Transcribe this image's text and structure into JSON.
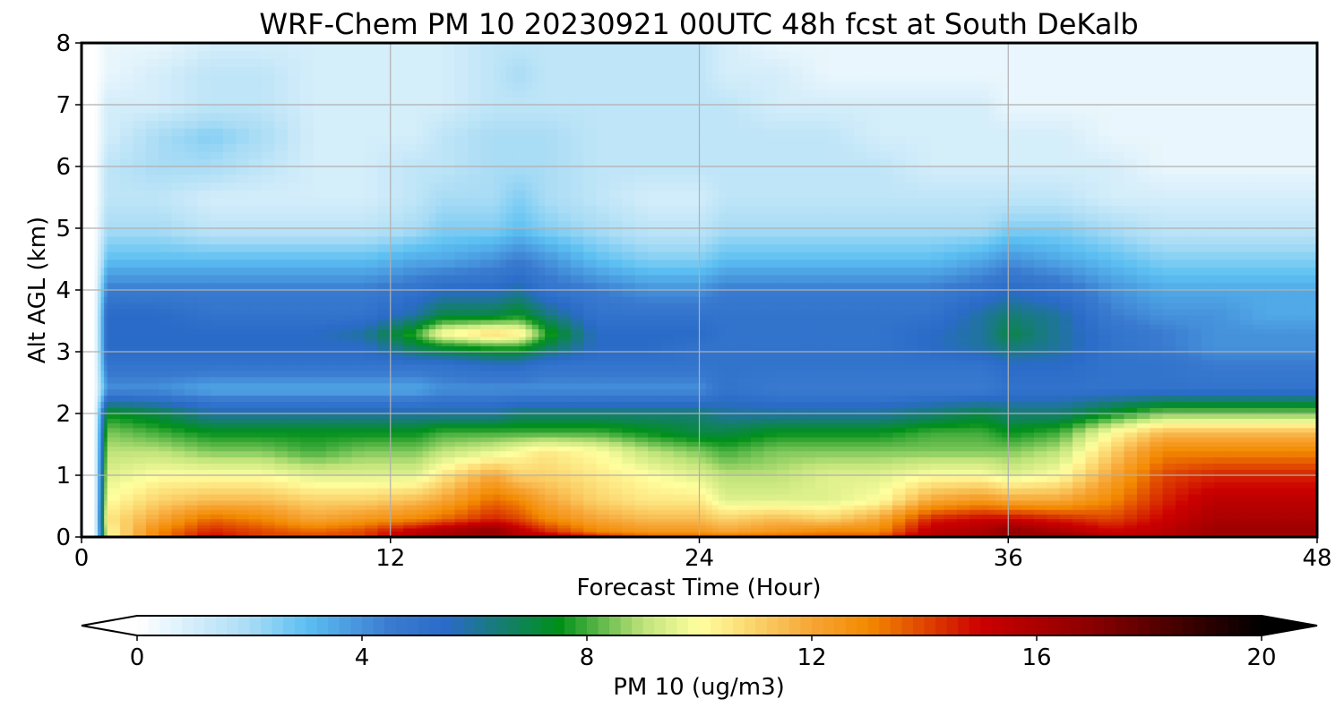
{
  "chart_data": {
    "type": "heatmap",
    "title": "WRF-Chem PM 10  20230921 00UTC 48h fcst at South DeKalb",
    "xlabel": "Forecast Time (Hour)",
    "ylabel": "Alt AGL (km)",
    "xlim": [
      0,
      48
    ],
    "ylim": [
      0,
      8
    ],
    "xticks": [
      0,
      12,
      24,
      36,
      48
    ],
    "yticks": [
      0,
      1,
      2,
      3,
      4,
      5,
      6,
      7,
      8
    ],
    "grid": true,
    "x": [
      0,
      0.5,
      1,
      3,
      5,
      7,
      9,
      11,
      13,
      14,
      16,
      17,
      18,
      20,
      22,
      24,
      25,
      27,
      29,
      31,
      33,
      35,
      36,
      38,
      40,
      42,
      44,
      46,
      48
    ],
    "y": [
      0,
      0.1,
      0.3,
      0.6,
      1,
      1.4,
      1.7,
      2,
      2.4,
      2.8,
      3.1,
      3.3,
      3.6,
      4,
      4.5,
      5,
      5.5,
      6,
      6.5,
      7,
      7.5,
      8
    ],
    "z": [
      [
        0,
        0,
        10,
        13,
        15,
        14,
        14,
        14,
        16,
        16,
        16,
        16,
        16,
        15,
        14,
        14,
        14,
        14,
        14,
        14,
        16,
        16,
        16,
        17,
        16,
        16,
        16,
        16,
        16
      ],
      [
        0,
        0,
        10,
        13,
        14.5,
        14,
        13.5,
        14,
        15.5,
        16,
        17,
        15.5,
        14.5,
        13,
        12.5,
        12.5,
        12,
        12.5,
        13,
        13,
        15.5,
        16,
        17,
        16,
        15,
        15.5,
        16.5,
        16.5,
        16.5
      ],
      [
        0,
        0,
        10.5,
        12,
        13.5,
        13,
        12,
        12.5,
        13,
        13.5,
        14.5,
        14,
        13,
        12,
        11.5,
        11.5,
        11,
        11.5,
        11,
        12,
        14.5,
        15,
        15,
        14.5,
        14,
        15,
        16,
        16,
        16
      ],
      [
        0,
        0,
        10,
        11,
        11.5,
        11.5,
        11,
        11,
        11.5,
        12,
        13.5,
        13,
        12,
        11,
        10.5,
        10.5,
        9.5,
        9.5,
        9.5,
        10,
        12,
        12.5,
        12,
        12,
        13,
        14.5,
        15.5,
        15.5,
        15.5
      ],
      [
        0,
        0,
        9.5,
        10,
        10,
        10,
        9.5,
        9.5,
        9.5,
        10.5,
        12,
        11,
        11,
        10.5,
        10,
        9.5,
        9,
        9,
        9.5,
        9.5,
        10,
        10,
        9.5,
        10,
        12,
        14,
        14.5,
        14.5,
        14.5
      ],
      [
        0,
        0,
        9,
        9,
        8.5,
        8.5,
        8,
        8.5,
        8.5,
        9,
        9.5,
        10,
        10.5,
        10,
        9,
        8.5,
        8,
        8.5,
        8.5,
        8.5,
        8.5,
        8.5,
        8.5,
        9,
        11,
        13,
        13,
        13,
        13
      ],
      [
        0,
        0,
        8.5,
        8,
        7.5,
        7.5,
        7.5,
        7.5,
        7.5,
        8,
        8,
        8,
        8,
        8,
        7.5,
        7,
        7,
        7.5,
        7.5,
        7.5,
        8,
        8,
        7.5,
        8,
        10,
        11.5,
        11.5,
        11.5,
        11.5
      ],
      [
        0,
        0,
        7.5,
        7,
        6,
        6,
        6,
        6,
        6,
        6,
        6,
        6.5,
        6.5,
        6.5,
        6.5,
        6.5,
        6,
        6,
        6,
        6,
        6.5,
        7,
        6.5,
        6.5,
        7.5,
        8.5,
        8.5,
        8.5,
        8.5
      ],
      [
        0,
        0,
        4,
        4,
        3.5,
        3.5,
        3.5,
        3.5,
        3.5,
        4,
        4,
        4,
        4,
        4,
        4,
        4,
        5,
        4.5,
        4.5,
        4.5,
        4.5,
        4.5,
        5,
        5,
        5,
        5,
        5,
        5,
        5
      ],
      [
        0,
        0,
        5,
        5,
        5,
        5,
        5,
        5,
        5,
        5,
        5.5,
        5.5,
        5,
        5,
        5,
        5,
        5,
        5,
        5,
        5,
        5,
        5,
        5.5,
        5.5,
        5,
        5,
        4.5,
        4.5,
        4.5
      ],
      [
        0,
        0,
        5.5,
        5.5,
        5.5,
        5.5,
        5.5,
        5.5,
        7,
        7.5,
        8,
        8,
        7,
        5.5,
        5.5,
        5,
        5,
        5,
        5,
        5,
        5.5,
        6,
        6.5,
        6,
        5,
        4.5,
        4,
        4,
        4
      ],
      [
        0,
        0,
        5.5,
        5.5,
        5.5,
        5.5,
        5.5,
        6,
        8,
        10,
        11,
        10.5,
        8,
        5.5,
        5.5,
        5.5,
        5,
        5,
        5,
        5,
        5.5,
        6,
        7,
        6,
        5,
        4.5,
        4,
        4,
        4
      ],
      [
        0,
        0,
        5.5,
        5.5,
        5,
        5,
        5,
        5,
        6,
        7,
        7,
        7.5,
        6.5,
        5,
        5,
        5,
        5,
        5,
        5,
        5,
        5,
        6,
        6.5,
        6,
        4.5,
        4,
        4,
        3.5,
        3.5
      ],
      [
        0,
        0,
        4.5,
        4.5,
        4.5,
        4.5,
        4.5,
        4.5,
        5,
        5.5,
        5.5,
        6,
        5,
        4.5,
        4,
        4,
        4.5,
        4.5,
        4.5,
        4.5,
        4.5,
        5,
        5.5,
        5,
        4,
        3.5,
        3.5,
        3.5,
        3.5
      ],
      [
        0,
        0,
        3,
        3,
        3,
        3,
        3,
        3,
        3.5,
        3.5,
        4,
        4.5,
        4,
        3,
        2.5,
        2.5,
        3,
        3,
        3,
        3,
        3,
        3.5,
        4,
        3.5,
        3,
        2.5,
        2.5,
        2.5,
        2.5
      ],
      [
        0,
        0,
        2,
        2,
        1.5,
        1.5,
        1.5,
        1.5,
        2,
        2.5,
        2.5,
        3,
        2.5,
        2,
        1.5,
        1.5,
        2,
        2,
        2,
        2,
        2,
        2,
        2.5,
        2.5,
        2,
        1.5,
        1.5,
        1.5,
        1.5
      ],
      [
        0,
        0,
        1.5,
        1.5,
        1,
        1,
        1,
        1,
        1.5,
        2,
        2,
        2.5,
        2,
        1.5,
        1,
        1,
        1.5,
        1.5,
        1.5,
        1.5,
        1.5,
        1.5,
        1.5,
        1.5,
        1,
        1,
        1,
        1,
        1
      ],
      [
        0,
        0,
        1.5,
        2,
        2,
        1.5,
        1,
        1,
        1.5,
        1.5,
        2,
        2,
        2,
        1.5,
        1.5,
        1.5,
        1.5,
        1.5,
        1.5,
        1.5,
        1,
        1,
        1,
        1,
        1,
        0.5,
        0.5,
        0.5,
        0.5
      ],
      [
        0,
        0,
        1,
        2,
        2.5,
        2,
        1,
        1,
        1,
        1.5,
        2,
        2,
        2,
        1.5,
        1.5,
        1.5,
        1.5,
        1.5,
        1.5,
        1,
        1,
        1,
        1,
        1,
        0.5,
        0.5,
        0.5,
        0.5,
        0.5
      ],
      [
        0,
        0,
        1,
        1,
        1.5,
        1.5,
        1,
        1,
        1,
        1,
        1.5,
        1.5,
        1.5,
        1.5,
        1.5,
        1.5,
        1.5,
        1,
        1,
        1,
        1,
        1,
        0.5,
        0.5,
        0.5,
        0.5,
        0.5,
        0.5,
        0.5
      ],
      [
        0,
        0,
        0.5,
        1,
        1.5,
        1.5,
        1,
        1,
        1,
        1,
        1.5,
        2,
        1.5,
        1.5,
        1.5,
        1.5,
        1,
        1,
        0.5,
        0.5,
        0.5,
        0.5,
        0.5,
        0.5,
        0.5,
        0.5,
        0.5,
        0.5,
        0.5
      ],
      [
        0,
        0,
        0.5,
        0.5,
        1,
        1,
        1,
        1,
        1,
        1,
        1.5,
        1.5,
        1.5,
        1.5,
        1.5,
        1.5,
        1,
        0.5,
        0.5,
        0.5,
        0.5,
        0.5,
        0.5,
        0.5,
        0.5,
        0.5,
        0.5,
        0.5,
        0.5
      ]
    ],
    "colorbar": {
      "label": "PM 10  (ug/m3)",
      "min": 0,
      "max": 20,
      "ticks": [
        0,
        4,
        8,
        12,
        16,
        20
      ],
      "extend": "both",
      "colors": [
        {
          "v": 0,
          "c": "#ffffff"
        },
        {
          "v": 2,
          "c": "#a9dcf5"
        },
        {
          "v": 3,
          "c": "#5cc0f2"
        },
        {
          "v": 4.5,
          "c": "#3a7bd0"
        },
        {
          "v": 5.5,
          "c": "#2a6bc8"
        },
        {
          "v": 7.5,
          "c": "#00901a"
        },
        {
          "v": 9,
          "c": "#bfe37a"
        },
        {
          "v": 10,
          "c": "#ffff9f"
        },
        {
          "v": 12,
          "c": "#f7a535"
        },
        {
          "v": 13,
          "c": "#f38a00"
        },
        {
          "v": 15,
          "c": "#cc0000"
        },
        {
          "v": 17,
          "c": "#8a0000"
        },
        {
          "v": 20,
          "c": "#000000"
        }
      ]
    }
  }
}
